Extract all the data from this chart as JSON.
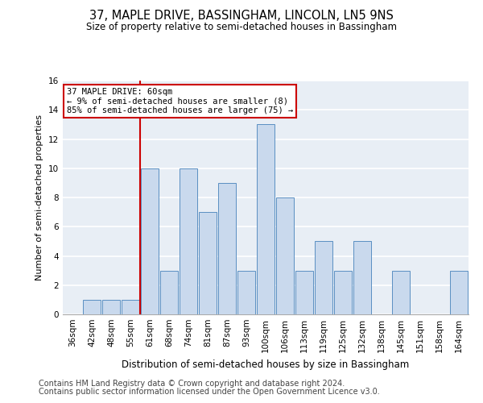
{
  "title": "37, MAPLE DRIVE, BASSINGHAM, LINCOLN, LN5 9NS",
  "subtitle": "Size of property relative to semi-detached houses in Bassingham",
  "xlabel": "Distribution of semi-detached houses by size in Bassingham",
  "ylabel": "Number of semi-detached properties",
  "footer1": "Contains HM Land Registry data © Crown copyright and database right 2024.",
  "footer2": "Contains public sector information licensed under the Open Government Licence v3.0.",
  "categories": [
    "36sqm",
    "42sqm",
    "48sqm",
    "55sqm",
    "61sqm",
    "68sqm",
    "74sqm",
    "81sqm",
    "87sqm",
    "93sqm",
    "100sqm",
    "106sqm",
    "113sqm",
    "119sqm",
    "125sqm",
    "132sqm",
    "138sqm",
    "145sqm",
    "151sqm",
    "158sqm",
    "164sqm"
  ],
  "values": [
    0,
    1,
    1,
    1,
    10,
    3,
    10,
    7,
    9,
    3,
    13,
    8,
    3,
    5,
    3,
    5,
    0,
    3,
    0,
    0,
    3
  ],
  "bar_color": "#c9d9ed",
  "bar_edge_color": "#5a8fc2",
  "annotation_text": "37 MAPLE DRIVE: 60sqm\n← 9% of semi-detached houses are smaller (8)\n85% of semi-detached houses are larger (75) →",
  "annotation_box_color": "white",
  "annotation_box_edge": "#cc0000",
  "vline_x": 3.5,
  "vline_color": "#cc0000",
  "ylim": [
    0,
    16
  ],
  "yticks": [
    0,
    2,
    4,
    6,
    8,
    10,
    12,
    14,
    16
  ],
  "background_color": "#e8eef5",
  "grid_color": "white",
  "title_fontsize": 10.5,
  "subtitle_fontsize": 8.5,
  "xlabel_fontsize": 8.5,
  "ylabel_fontsize": 8,
  "tick_fontsize": 7.5,
  "footer_fontsize": 7,
  "annotation_fontsize": 7.5
}
